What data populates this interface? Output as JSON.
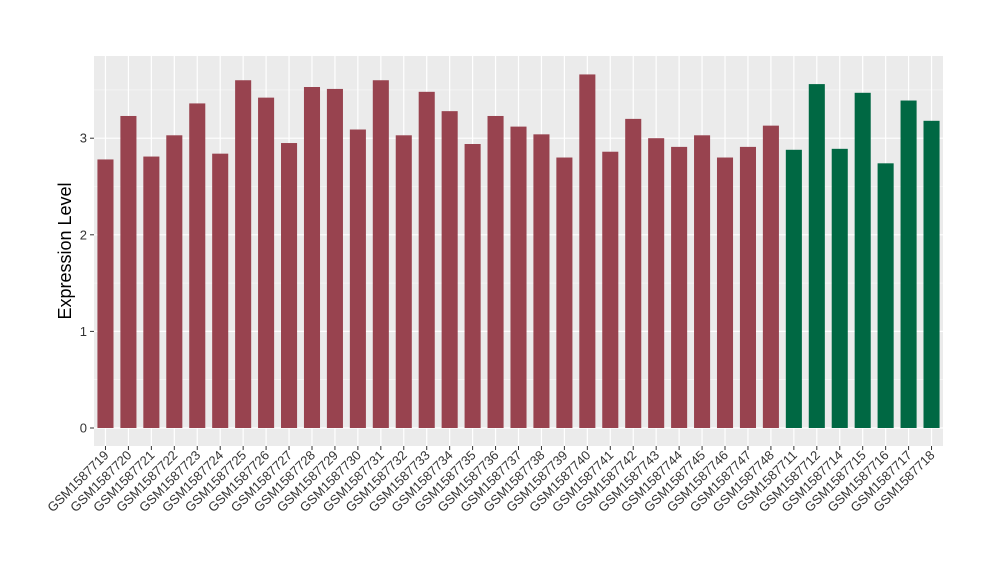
{
  "chart_data": {
    "type": "bar",
    "title": "",
    "xlabel": "",
    "ylabel": "Expression Level",
    "ylim": [
      0,
      3.85
    ],
    "yticks": [
      0,
      1,
      2,
      3
    ],
    "grid": true,
    "legend": "none",
    "colors": {
      "panel_background": "#EBEBEB",
      "grid_major": "#FFFFFF",
      "group_1": "#98434F",
      "group_2": "#006843"
    },
    "categories": [
      "GSM1587719",
      "GSM1587720",
      "GSM1587721",
      "GSM1587722",
      "GSM1587723",
      "GSM1587724",
      "GSM1587725",
      "GSM1587726",
      "GSM1587727",
      "GSM1587728",
      "GSM1587729",
      "GSM1587730",
      "GSM1587731",
      "GSM1587732",
      "GSM1587733",
      "GSM1587734",
      "GSM1587735",
      "GSM1587736",
      "GSM1587737",
      "GSM1587738",
      "GSM1587739",
      "GSM1587740",
      "GSM1587741",
      "GSM1587742",
      "GSM1587743",
      "GSM1587744",
      "GSM1587745",
      "GSM1587746",
      "GSM1587747",
      "GSM1587748",
      "GSM1587711",
      "GSM1587712",
      "GSM1587714",
      "GSM1587715",
      "GSM1587716",
      "GSM1587717",
      "GSM1587718"
    ],
    "values": [
      2.78,
      3.23,
      2.81,
      3.03,
      3.36,
      2.84,
      3.6,
      3.42,
      2.95,
      3.53,
      3.51,
      3.09,
      3.6,
      3.03,
      3.48,
      3.28,
      2.94,
      3.23,
      3.12,
      3.04,
      2.8,
      3.66,
      2.86,
      3.2,
      3.0,
      2.91,
      3.03,
      2.8,
      2.91,
      3.13,
      2.88,
      3.56,
      2.89,
      3.47,
      2.74,
      3.39,
      3.18
    ],
    "group": [
      1,
      1,
      1,
      1,
      1,
      1,
      1,
      1,
      1,
      1,
      1,
      1,
      1,
      1,
      1,
      1,
      1,
      1,
      1,
      1,
      1,
      1,
      1,
      1,
      1,
      1,
      1,
      1,
      1,
      1,
      2,
      2,
      2,
      2,
      2,
      2,
      2
    ]
  }
}
